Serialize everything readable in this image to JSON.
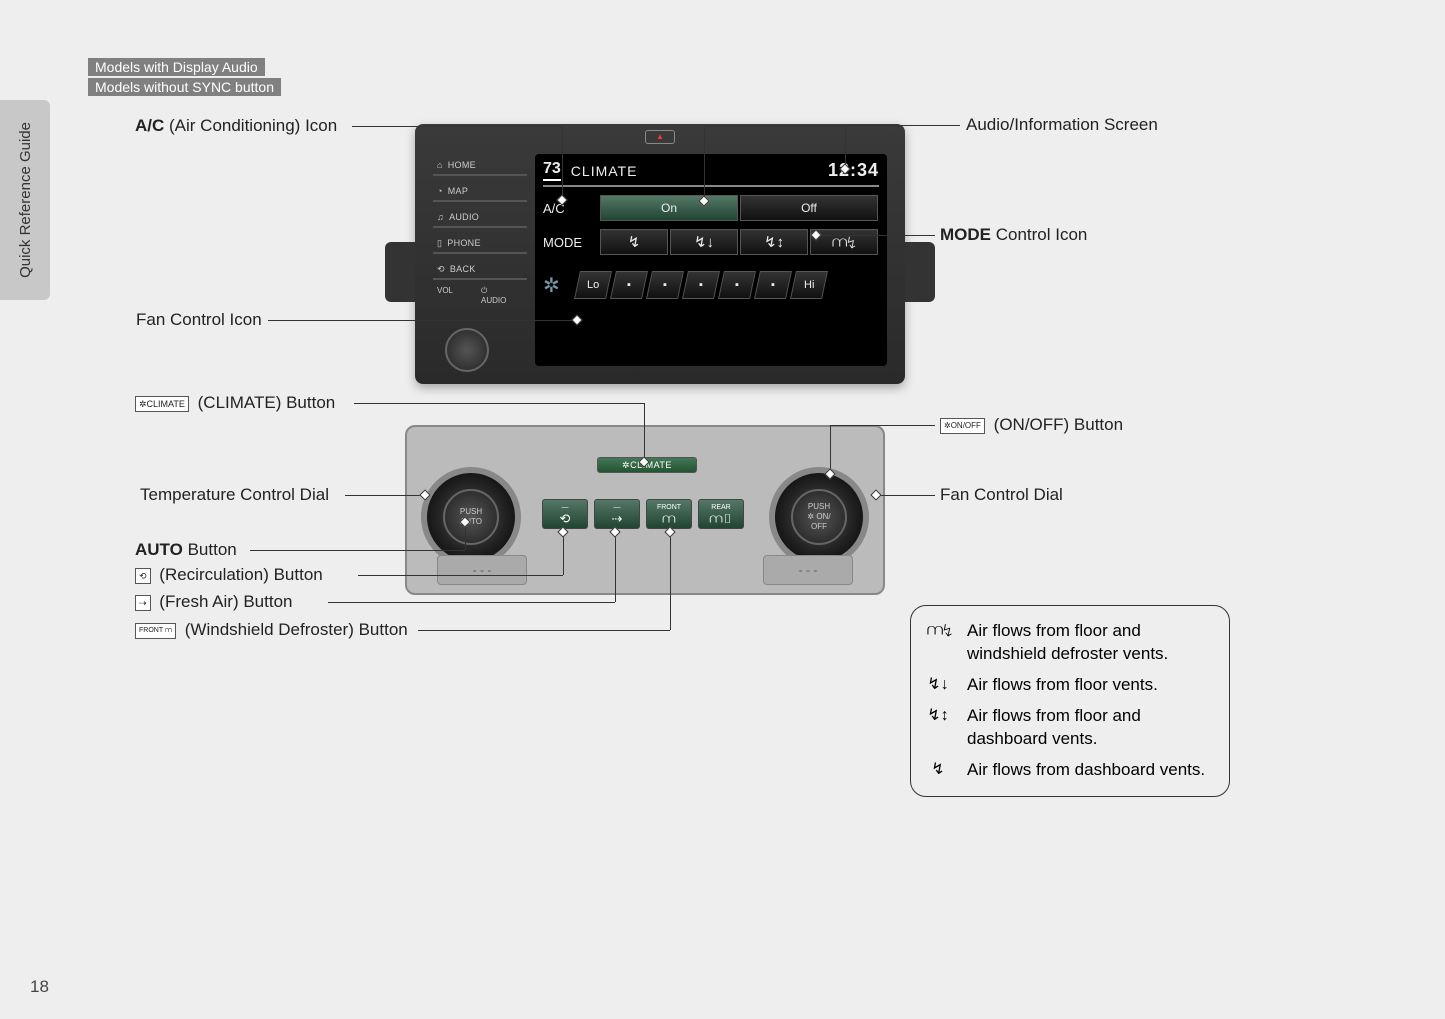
{
  "sideTab": "Quick Reference Guide",
  "pageNumber": "18",
  "badges": {
    "a": "Models with Display Audio",
    "b": "Models without SYNC button"
  },
  "callouts": {
    "ac": {
      "bold": "A/C",
      "rest": " (Air Conditioning) Icon"
    },
    "audioInfo": "Audio/Information Screen",
    "modeCtrl": {
      "bold": "MODE",
      "rest": " Control Icon"
    },
    "fanCtrl": "Fan Control Icon",
    "climateBtn": "(CLIMATE) Button",
    "onOffBtn": "(ON/OFF) Button",
    "tempDial": "Temperature Control Dial",
    "fanDial": "Fan Control Dial",
    "autoBtn": {
      "bold": "AUTO",
      "rest": " Button"
    },
    "recirc": "(Recirculation) Button",
    "freshAir": "(Fresh Air) Button",
    "defrost": "(Windshield Defroster) Button"
  },
  "iconLabels": {
    "climate": "✲CLIMATE",
    "onoff": "✲ON/OFF",
    "recirc": "⟲",
    "freshAir": "⇢",
    "front": "FRONT ⩋"
  },
  "display": {
    "softButtons": [
      "HOME",
      "MAP",
      "AUDIO",
      "PHONE",
      "BACK"
    ],
    "softIcons": [
      "⌂",
      "◔",
      "♫",
      "▯",
      "⟲"
    ],
    "vol": "VOL",
    "audio": "AUDIO",
    "hazard": "▲",
    "screen": {
      "temp": "73",
      "title": "CLIMATE",
      "clock": "12:34",
      "acLabel": "A/C",
      "acOn": "On",
      "acOff": "Off",
      "modeLabel": "MODE",
      "modeIcons": [
        "↯",
        "↯↓",
        "↯↕",
        "⩋↯"
      ],
      "fanLo": "Lo",
      "fanHi": "Hi"
    }
  },
  "panel": {
    "climateBar": "✲CLIMATE",
    "dialLeft": "PUSH\nAUTO",
    "dialRight": "PUSH\n✲ ON/\nOFF",
    "midLabels": [
      "",
      "",
      "FRONT",
      "REAR"
    ],
    "midIcons": [
      "⟲",
      "⇢",
      "⩋",
      "⩋▯"
    ]
  },
  "legend": {
    "items": [
      {
        "icon": "⩋↯",
        "text": "Air flows from floor and windshield defroster vents."
      },
      {
        "icon": "↯↓",
        "text": "Air flows from floor vents."
      },
      {
        "icon": "↯↕",
        "text": "Air flows from floor and dashboard vents."
      },
      {
        "icon": "↯",
        "text": "Air flows from dashboard vents."
      }
    ]
  }
}
